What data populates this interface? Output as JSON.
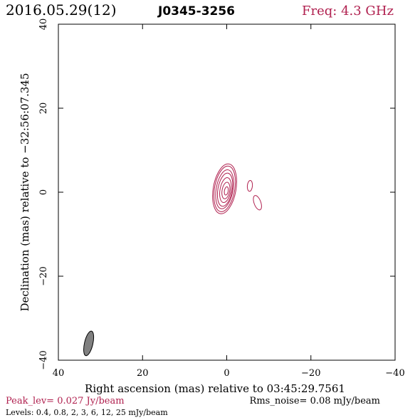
{
  "header": {
    "date_label": "2016.05.29(12)",
    "source_name": "J0345-3256",
    "frequency_label": "Freq: 4.3 GHz"
  },
  "footer": {
    "peak_level": "Peak_lev=  0.027 Jy/beam",
    "rms_noise": "Rms_noise= 0.08 mJy/beam",
    "levels": "Levels: 0.4, 0.8,   2,   3,   6,  12,  25 mJy/beam"
  },
  "colors": {
    "contour": "#b0204f",
    "frame": "#000000",
    "beam_fill": "#808080",
    "peak_text": "#b0204f"
  },
  "chart_data": {
    "type": "contour",
    "xlabel": "Right ascension (mas) relative to 03:45:29.7561",
    "ylabel": "Declination (mas) relative to −32:56:07.345",
    "xlim": [
      40,
      -40
    ],
    "ylim": [
      -40,
      40
    ],
    "x_ticks": [
      40,
      20,
      0,
      -20,
      -40
    ],
    "y_ticks": [
      -40,
      -20,
      0,
      20,
      40
    ],
    "x_tick_labels": [
      "40",
      "20",
      "0",
      "−20",
      "−40"
    ],
    "y_tick_labels": [
      "−40",
      "−20",
      "0",
      "20",
      "40"
    ],
    "grid": false,
    "levels_mJy_per_beam": [
      0.4,
      0.8,
      2,
      3,
      6,
      12,
      25
    ],
    "peak_Jy_per_beam": 0.027,
    "rms_noise_mJy_per_beam": 0.08,
    "contours": [
      {
        "level": 0.4,
        "cx": 0.5,
        "cy": 0.8,
        "a": 6.0,
        "b": 2.7,
        "angle_deg": 10
      },
      {
        "level": 0.8,
        "cx": 0.5,
        "cy": 0.8,
        "a": 5.5,
        "b": 2.4,
        "angle_deg": 10
      },
      {
        "level": 2,
        "cx": 0.5,
        "cy": 0.7,
        "a": 4.7,
        "b": 2.0,
        "angle_deg": 10
      },
      {
        "level": 3,
        "cx": 0.4,
        "cy": 0.6,
        "a": 4.0,
        "b": 1.7,
        "angle_deg": 10
      },
      {
        "level": 6,
        "cx": 0.3,
        "cy": 0.5,
        "a": 3.0,
        "b": 1.3,
        "angle_deg": 10
      },
      {
        "level": 12,
        "cx": 0.2,
        "cy": 0.4,
        "a": 2.0,
        "b": 0.9,
        "angle_deg": 10
      },
      {
        "level": 25,
        "cx": 0.1,
        "cy": 0.3,
        "a": 1.0,
        "b": 0.45,
        "angle_deg": 10
      }
    ],
    "components": [
      {
        "level": 0.4,
        "cx": -5.5,
        "cy": 1.5,
        "a": 1.3,
        "b": 0.6,
        "angle_deg": 5
      },
      {
        "level": 0.4,
        "cx": -7.3,
        "cy": -2.5,
        "a": 1.8,
        "b": 0.8,
        "angle_deg": -20
      }
    ],
    "beam": {
      "cx": 32.8,
      "cy": -36.0,
      "a": 3.0,
      "b": 1.0,
      "angle_deg": 13
    }
  }
}
